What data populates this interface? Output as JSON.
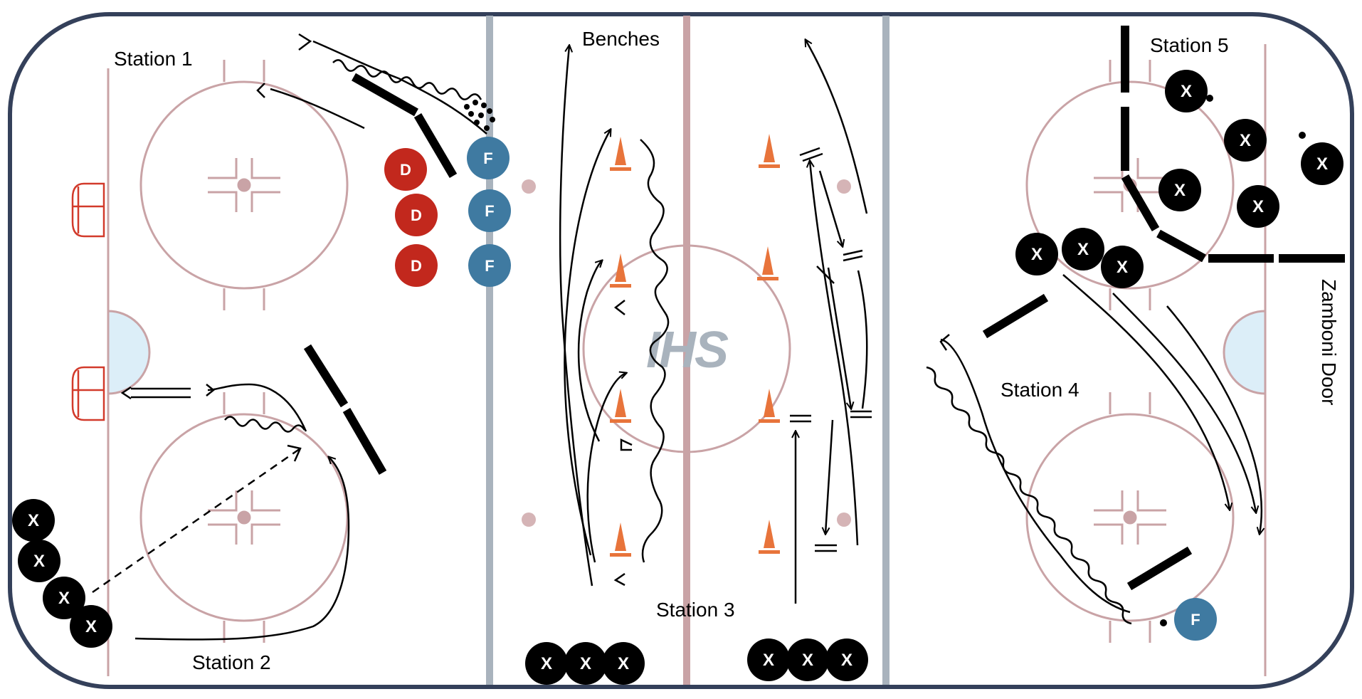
{
  "labels": {
    "station1": "Station 1",
    "station2": "Station 2",
    "station3": "Station 3",
    "station4": "Station 4",
    "station5": "Station 5",
    "benches": "Benches",
    "zamboni": "Zamboni Door",
    "logo": "IHS"
  },
  "markers": {
    "defense": "D",
    "forward": "F",
    "player": "X"
  },
  "colors": {
    "boards": "#34405a",
    "rink_lines": "#c9a3a6",
    "blue_line": "#a9b3bd",
    "center_line": "#c9a3a6",
    "goal_red": "#d23a2b",
    "crease": "#dceef8",
    "defense": "#c2281d",
    "forward": "#3f7aa1",
    "player": "#000000",
    "cone": "#e8743b",
    "logo": "#a9b3bd"
  }
}
